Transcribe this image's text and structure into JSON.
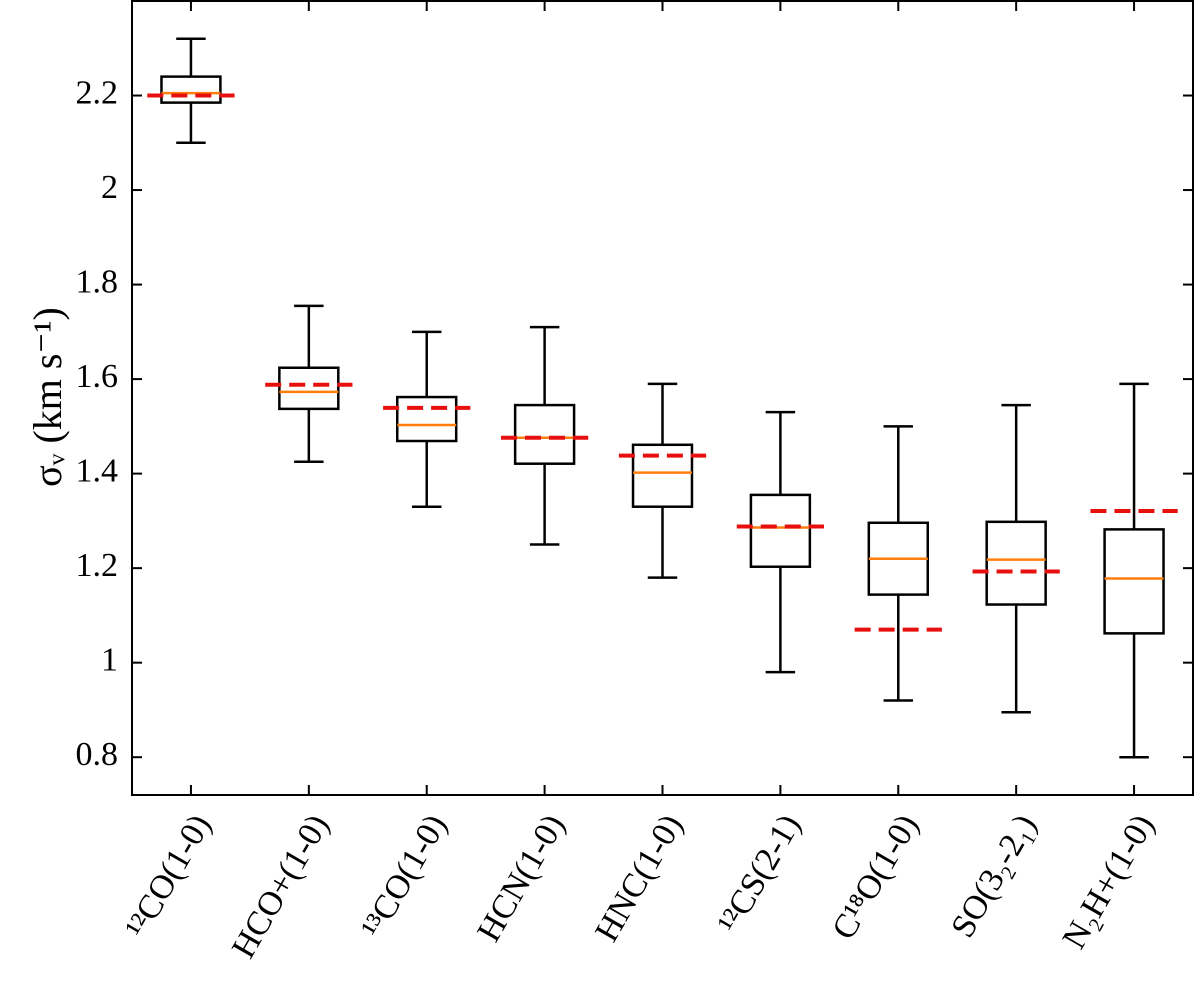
{
  "chart_data": {
    "type": "box",
    "y_label": "σᵥ (km s⁻¹)",
    "categories": [
      "¹²CO(1-0)",
      "HCO+(1-0)",
      "¹³CO(1-0)",
      "HCN(1-0)",
      "HNC(1-0)",
      "¹²CS(2-1)",
      "C¹⁸O(1-0)",
      "SO(3₂-2₁)",
      "N₂H+(1-0)"
    ],
    "boxes": [
      {
        "whislo": 2.1,
        "q1": 2.185,
        "med": 2.205,
        "q3": 2.24,
        "whishi": 2.32
      },
      {
        "whislo": 1.425,
        "q1": 1.537,
        "med": 1.573,
        "q3": 1.624,
        "whishi": 1.755
      },
      {
        "whislo": 1.33,
        "q1": 1.469,
        "med": 1.503,
        "q3": 1.562,
        "whishi": 1.7
      },
      {
        "whislo": 1.25,
        "q1": 1.421,
        "med": 1.476,
        "q3": 1.545,
        "whishi": 1.71
      },
      {
        "whislo": 1.18,
        "q1": 1.33,
        "med": 1.402,
        "q3": 1.461,
        "whishi": 1.59
      },
      {
        "whislo": 0.98,
        "q1": 1.203,
        "med": 1.286,
        "q3": 1.355,
        "whishi": 1.53
      },
      {
        "whislo": 0.92,
        "q1": 1.144,
        "med": 1.22,
        "q3": 1.296,
        "whishi": 1.5
      },
      {
        "whislo": 0.895,
        "q1": 1.123,
        "med": 1.218,
        "q3": 1.298,
        "whishi": 1.545
      },
      {
        "whislo": 0.8,
        "q1": 1.062,
        "med": 1.178,
        "q3": 1.282,
        "whishi": 1.59
      }
    ],
    "reference_values": [
      2.2,
      1.588,
      1.539,
      1.476,
      1.438,
      1.288,
      1.07,
      1.193,
      1.321
    ],
    "box_color": "#000000",
    "median_color": "#ff7f0e",
    "reference_color": "#e8100f",
    "ylim": [
      0.72,
      2.4
    ],
    "yticks": [
      0.8,
      1.0,
      1.2,
      1.4,
      1.6,
      1.8,
      2.0,
      2.2
    ],
    "grid": false
  }
}
